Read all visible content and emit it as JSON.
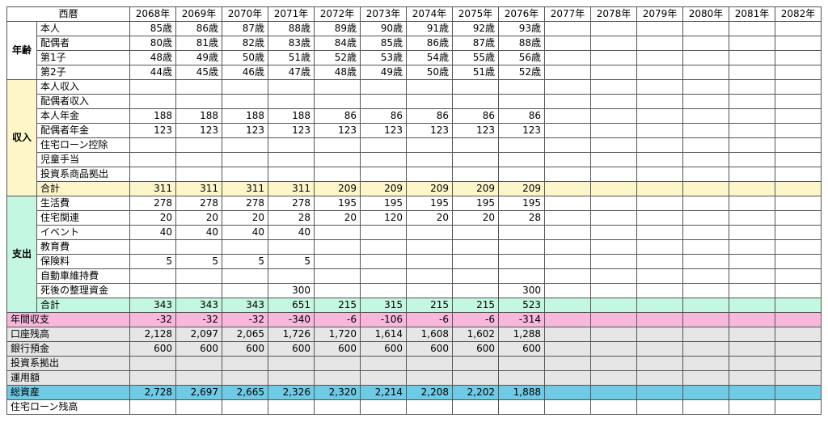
{
  "header": {
    "label": "西暦",
    "years": [
      "2068年",
      "2069年",
      "2070年",
      "2071年",
      "2072年",
      "2073年",
      "2074年",
      "2075年",
      "2076年",
      "2077年",
      "2078年",
      "2079年",
      "2080年",
      "2081年",
      "2082年"
    ]
  },
  "sections": [
    {
      "title": "年齢",
      "style": "white",
      "rows": [
        {
          "label": "本人",
          "values": [
            "85歳",
            "86歳",
            "87歳",
            "88歳",
            "89歳",
            "90歳",
            "91歳",
            "92歳",
            "93歳",
            "",
            "",
            "",
            "",
            "",
            ""
          ]
        },
        {
          "label": "配偶者",
          "values": [
            "80歳",
            "81歳",
            "82歳",
            "83歳",
            "84歳",
            "85歳",
            "86歳",
            "87歳",
            "88歳",
            "",
            "",
            "",
            "",
            "",
            ""
          ]
        },
        {
          "label": "第1子",
          "values": [
            "48歳",
            "49歳",
            "50歳",
            "51歳",
            "52歳",
            "53歳",
            "54歳",
            "55歳",
            "56歳",
            "",
            "",
            "",
            "",
            "",
            ""
          ]
        },
        {
          "label": "第2子",
          "values": [
            "44歳",
            "45歳",
            "46歳",
            "47歳",
            "48歳",
            "49歳",
            "50歳",
            "51歳",
            "52歳",
            "",
            "",
            "",
            "",
            "",
            ""
          ]
        }
      ]
    },
    {
      "title": "収入",
      "style": "yellow",
      "rows": [
        {
          "label": "本人収入",
          "values": [
            "",
            "",
            "",
            "",
            "",
            "",
            "",
            "",
            "",
            "",
            "",
            "",
            "",
            "",
            ""
          ]
        },
        {
          "label": "配偶者収入",
          "values": [
            "",
            "",
            "",
            "",
            "",
            "",
            "",
            "",
            "",
            "",
            "",
            "",
            "",
            "",
            ""
          ]
        },
        {
          "label": "本人年金",
          "values": [
            "188",
            "188",
            "188",
            "188",
            "86",
            "86",
            "86",
            "86",
            "86",
            "",
            "",
            "",
            "",
            "",
            ""
          ]
        },
        {
          "label": "配偶者年金",
          "values": [
            "123",
            "123",
            "123",
            "123",
            "123",
            "123",
            "123",
            "123",
            "123",
            "",
            "",
            "",
            "",
            "",
            ""
          ]
        },
        {
          "label": "住宅ローン控除",
          "values": [
            "",
            "",
            "",
            "",
            "",
            "",
            "",
            "",
            "",
            "",
            "",
            "",
            "",
            "",
            ""
          ]
        },
        {
          "label": "児童手当",
          "values": [
            "",
            "",
            "",
            "",
            "",
            "",
            "",
            "",
            "",
            "",
            "",
            "",
            "",
            "",
            ""
          ]
        },
        {
          "label": "投資系商品拠出",
          "values": [
            "",
            "",
            "",
            "",
            "",
            "",
            "",
            "",
            "",
            "",
            "",
            "",
            "",
            "",
            ""
          ]
        },
        {
          "label": "合計",
          "total": true,
          "values": [
            "311",
            "311",
            "311",
            "311",
            "209",
            "209",
            "209",
            "209",
            "209",
            "",
            "",
            "",
            "",
            "",
            ""
          ]
        }
      ]
    },
    {
      "title": "支出",
      "style": "mint",
      "rows": [
        {
          "label": "生活費",
          "values": [
            "278",
            "278",
            "278",
            "278",
            "195",
            "195",
            "195",
            "195",
            "195",
            "",
            "",
            "",
            "",
            "",
            ""
          ]
        },
        {
          "label": "住宅関連",
          "values": [
            "20",
            "20",
            "20",
            "28",
            "20",
            "120",
            "20",
            "20",
            "28",
            "",
            "",
            "",
            "",
            "",
            ""
          ]
        },
        {
          "label": "イベント",
          "values": [
            "40",
            "40",
            "40",
            "40",
            "",
            "",
            "",
            "",
            "",
            "",
            "",
            "",
            "",
            "",
            ""
          ]
        },
        {
          "label": "教育費",
          "values": [
            "",
            "",
            "",
            "",
            "",
            "",
            "",
            "",
            "",
            "",
            "",
            "",
            "",
            "",
            ""
          ]
        },
        {
          "label": "保険料",
          "values": [
            "5",
            "5",
            "5",
            "5",
            "",
            "",
            "",
            "",
            "",
            "",
            "",
            "",
            "",
            "",
            ""
          ]
        },
        {
          "label": "自動車維持費",
          "values": [
            "",
            "",
            "",
            "",
            "",
            "",
            "",
            "",
            "",
            "",
            "",
            "",
            "",
            "",
            ""
          ]
        },
        {
          "label": "死後の整理資金",
          "values": [
            "",
            "",
            "",
            "300",
            "",
            "",
            "",
            "",
            "300",
            "",
            "",
            "",
            "",
            "",
            ""
          ]
        },
        {
          "label": "合計",
          "total": true,
          "values": [
            "343",
            "343",
            "343",
            "651",
            "215",
            "315",
            "215",
            "215",
            "523",
            "",
            "",
            "",
            "",
            "",
            ""
          ]
        }
      ]
    }
  ],
  "summary": [
    {
      "label": "年間収支",
      "style": "pink",
      "values": [
        "-32",
        "-32",
        "-32",
        "-340",
        "-6",
        "-106",
        "-6",
        "-6",
        "-314",
        "",
        "",
        "",
        "",
        "",
        ""
      ]
    },
    {
      "label": "口座残高",
      "style": "gray",
      "values": [
        "2,128",
        "2,097",
        "2,065",
        "1,726",
        "1,720",
        "1,614",
        "1,608",
        "1,602",
        "1,288",
        "",
        "",
        "",
        "",
        "",
        ""
      ]
    },
    {
      "label": "銀行預金",
      "style": "gray",
      "values": [
        "600",
        "600",
        "600",
        "600",
        "600",
        "600",
        "600",
        "600",
        "600",
        "",
        "",
        "",
        "",
        "",
        ""
      ]
    },
    {
      "label": "投資系拠出",
      "style": "gray",
      "values": [
        "",
        "",
        "",
        "",
        "",
        "",
        "",
        "",
        "",
        "",
        "",
        "",
        "",
        "",
        ""
      ]
    },
    {
      "label": "運用額",
      "style": "gray",
      "values": [
        "",
        "",
        "",
        "",
        "",
        "",
        "",
        "",
        "",
        "",
        "",
        "",
        "",
        "",
        ""
      ]
    },
    {
      "label": "総資産",
      "style": "blue",
      "values": [
        "2,728",
        "2,697",
        "2,665",
        "2,326",
        "2,320",
        "2,214",
        "2,208",
        "2,202",
        "1,888",
        "",
        "",
        "",
        "",
        "",
        ""
      ]
    },
    {
      "label": "住宅ローン残高",
      "style": "white",
      "values": [
        "",
        "",
        "",
        "",
        "",
        "",
        "",
        "",
        "",
        "",
        "",
        "",
        "",
        "",
        ""
      ]
    }
  ],
  "colors": {
    "income": "#fdf6c9",
    "expense": "#c3f7e0",
    "balance": "#f7b8dc",
    "account": "#e6e6e6",
    "total_assets": "#6ecbe6"
  }
}
